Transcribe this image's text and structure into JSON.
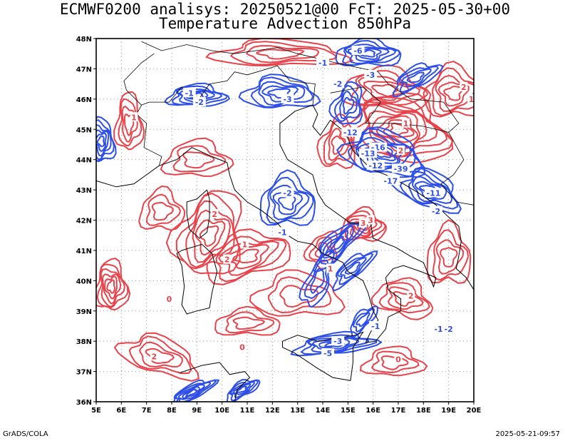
{
  "title": {
    "line1": "ECMWF0200 analisys: 20250521@00 FcT: 2025-05-30+00",
    "line2": "Temperature Advection 850hPa"
  },
  "footer": {
    "left": "GrADS/COLA",
    "right": "2025-05-21-09:57"
  },
  "map": {
    "lon_range": [
      5,
      20
    ],
    "lat_range": [
      36,
      48
    ],
    "lon_ticks": [
      "5E",
      "6E",
      "7E",
      "8E",
      "9E",
      "10E",
      "11E",
      "12E",
      "13E",
      "14E",
      "15E",
      "16E",
      "17E",
      "18E",
      "19E",
      "20E"
    ],
    "lat_ticks": [
      "36N",
      "37N",
      "38N",
      "39N",
      "40N",
      "41N",
      "42N",
      "43N",
      "44N",
      "45N",
      "46N",
      "47N",
      "48N"
    ],
    "grid": true,
    "colors": {
      "positive": "#e8434b",
      "negative": "#2d4fe8",
      "coast": "#000000",
      "grid": "#9a9a9a"
    },
    "contour_labels": [
      {
        "text": "-1",
        "lon": 14.0,
        "lat": 47.2,
        "sign": "neg"
      },
      {
        "text": "-6",
        "lon": 15.4,
        "lat": 47.6,
        "sign": "neg"
      },
      {
        "text": "-3",
        "lon": 15.9,
        "lat": 46.8,
        "sign": "neg"
      },
      {
        "text": "-2",
        "lon": 14.6,
        "lat": 46.5,
        "sign": "neg"
      },
      {
        "text": "-1",
        "lon": 8.7,
        "lat": 46.2,
        "sign": "neg"
      },
      {
        "text": "-2",
        "lon": 9.1,
        "lat": 45.9,
        "sign": "neg"
      },
      {
        "text": "-3",
        "lon": 12.6,
        "lat": 46.0,
        "sign": "neg"
      },
      {
        "text": "-12",
        "lon": 15.1,
        "lat": 44.9,
        "sign": "neg"
      },
      {
        "text": "-16",
        "lon": 16.2,
        "lat": 44.4,
        "sign": "neg"
      },
      {
        "text": "-13",
        "lon": 15.8,
        "lat": 44.2,
        "sign": "neg"
      },
      {
        "text": "-12",
        "lon": 16.1,
        "lat": 43.8,
        "sign": "neg"
      },
      {
        "text": "-39",
        "lon": 17.1,
        "lat": 43.7,
        "sign": "neg"
      },
      {
        "text": "-17",
        "lon": 16.7,
        "lat": 43.3,
        "sign": "neg"
      },
      {
        "text": "-11",
        "lon": 18.4,
        "lat": 42.9,
        "sign": "neg"
      },
      {
        "text": "-2",
        "lon": 18.5,
        "lat": 42.3,
        "sign": "neg"
      },
      {
        "text": "-2",
        "lon": 12.6,
        "lat": 42.9,
        "sign": "neg"
      },
      {
        "text": "-1",
        "lon": 18.6,
        "lat": 38.4,
        "sign": "neg"
      },
      {
        "text": "-2",
        "lon": 19.0,
        "lat": 38.4,
        "sign": "neg"
      },
      {
        "text": "-3",
        "lon": 14.6,
        "lat": 38.0,
        "sign": "neg"
      },
      {
        "text": "-5",
        "lon": 14.2,
        "lat": 37.6,
        "sign": "neg"
      },
      {
        "text": "-1",
        "lon": 16.1,
        "lat": 38.5,
        "sign": "neg"
      },
      {
        "text": "-1",
        "lon": 12.4,
        "lat": 41.6,
        "sign": "neg"
      },
      {
        "text": "1",
        "lon": 17.3,
        "lat": 45.2,
        "sign": "pos"
      },
      {
        "text": "2",
        "lon": 17.1,
        "lat": 44.3,
        "sign": "pos"
      },
      {
        "text": "3",
        "lon": 15.9,
        "lat": 42.0,
        "sign": "pos"
      },
      {
        "text": "3",
        "lon": 15.6,
        "lat": 41.9,
        "sign": "pos"
      },
      {
        "text": "2",
        "lon": 9.7,
        "lat": 42.2,
        "sign": "pos"
      },
      {
        "text": "1",
        "lon": 10.9,
        "lat": 41.2,
        "sign": "pos"
      },
      {
        "text": "2",
        "lon": 10.2,
        "lat": 40.7,
        "sign": "pos"
      },
      {
        "text": "2",
        "lon": 17.5,
        "lat": 39.5,
        "sign": "pos"
      },
      {
        "text": "2",
        "lon": 19.6,
        "lat": 46.4,
        "sign": "pos"
      },
      {
        "text": "1",
        "lon": 19.9,
        "lat": 46.0,
        "sign": "pos"
      },
      {
        "text": "1",
        "lon": 6.5,
        "lat": 45.4,
        "sign": "pos"
      },
      {
        "text": "2",
        "lon": 7.3,
        "lat": 37.5,
        "sign": "pos"
      },
      {
        "text": "0",
        "lon": 10.8,
        "lat": 37.8,
        "sign": "pos"
      },
      {
        "text": "0",
        "lon": 17.0,
        "lat": 37.4,
        "sign": "pos"
      },
      {
        "text": "0",
        "lon": 7.9,
        "lat": 39.4,
        "sign": "pos"
      },
      {
        "text": "1",
        "lon": 14.3,
        "lat": 40.4,
        "sign": "pos"
      }
    ]
  }
}
